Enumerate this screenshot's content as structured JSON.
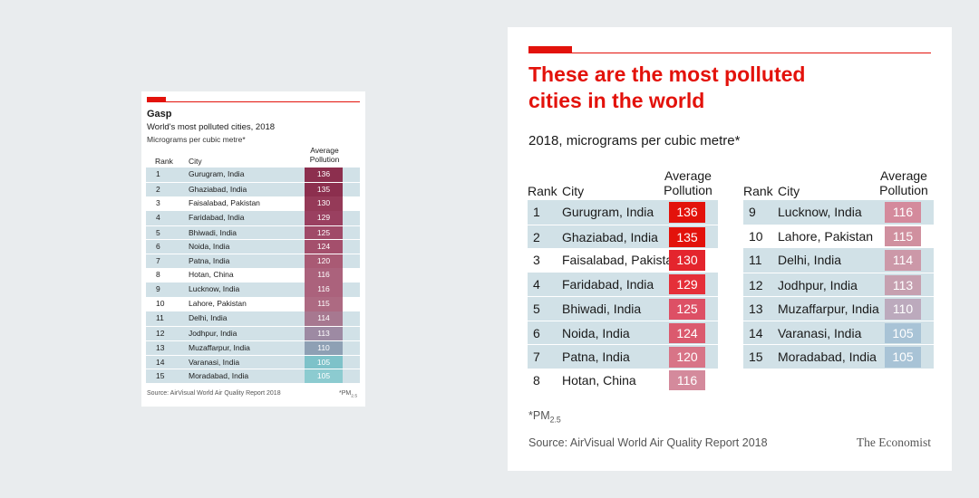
{
  "small_chart": {
    "title": "Gasp",
    "subtitle": "World's most polluted cities, 2018",
    "unit": "Micrograms per cubic metre*",
    "columns": {
      "rank": "Rank",
      "city": "City",
      "avg_line1": "Average",
      "avg_line2": "Pollution"
    },
    "source": "Source: AirVisual World Air Quality Report 2018",
    "footnote_main": "*PM",
    "footnote_sub": "2.5"
  },
  "big_chart": {
    "title": "These are the most polluted cities in the world",
    "subtitle": "2018, micrograms per cubic metre*",
    "columns": {
      "rank": "Rank",
      "city": "City",
      "avg_line1": "Average",
      "avg_line2": "Pollution"
    },
    "footnote_main": "*PM",
    "footnote_sub": "2.5",
    "source": "Source: AirVisual World Air Quality Report 2018",
    "brand": "The Economist"
  },
  "chart_data": {
    "type": "table",
    "columns": [
      "Rank",
      "City",
      "Average Pollution"
    ],
    "rows": [
      {
        "rank": "1",
        "city": "Gurugram, India",
        "value": 136
      },
      {
        "rank": "2",
        "city": "Ghaziabad, India",
        "value": 135
      },
      {
        "rank": "3",
        "city": "Faisalabad, Pakistan",
        "value": 130
      },
      {
        "rank": "4",
        "city": "Faridabad, India",
        "value": 129
      },
      {
        "rank": "5",
        "city": "Bhiwadi, India",
        "value": 125
      },
      {
        "rank": "6",
        "city": "Noida, India",
        "value": 124
      },
      {
        "rank": "7",
        "city": "Patna, India",
        "value": 120
      },
      {
        "rank": "8",
        "city": "Hotan, China",
        "value": 116
      },
      {
        "rank": "9",
        "city": "Lucknow, India",
        "value": 116
      },
      {
        "rank": "10",
        "city": "Lahore, Pakistan",
        "value": 115
      },
      {
        "rank": "11",
        "city": "Delhi, India",
        "value": 114
      },
      {
        "rank": "12",
        "city": "Jodhpur, India",
        "value": 113
      },
      {
        "rank": "13",
        "city": "Muzaffarpur, India",
        "value": 110
      },
      {
        "rank": "14",
        "city": "Varanasi, India",
        "value": 105
      },
      {
        "rank": "15",
        "city": "Moradabad, India",
        "value": 105
      }
    ],
    "small_colors": [
      "#8c2f4e",
      "#8c2f4e",
      "#953a58",
      "#9a4060",
      "#a04a68",
      "#a44f6c",
      "#a95a74",
      "#ab627c",
      "#ab627c",
      "#ad6a82",
      "#a77890",
      "#9d8aa3",
      "#8ea0b4",
      "#7ec2c9",
      "#8ccbd0"
    ],
    "big_colors": [
      "#e3120b",
      "#e3120b",
      "#e4252d",
      "#e52f39",
      "#dd5065",
      "#db5a6e",
      "#d87487",
      "#d48a9c",
      "#d48a9c",
      "#d0909f",
      "#cc98a8",
      "#c6a0b0",
      "#bcaabd",
      "#a8c3d6",
      "#a8c3d6"
    ],
    "small_shaded": [
      true,
      true,
      false,
      true,
      true,
      true,
      true,
      false,
      true,
      false,
      true,
      true,
      true,
      true,
      true
    ],
    "big_shaded": [
      true,
      true,
      false,
      true,
      true,
      true,
      true,
      false,
      true,
      false,
      true,
      true,
      true,
      true,
      true
    ]
  }
}
